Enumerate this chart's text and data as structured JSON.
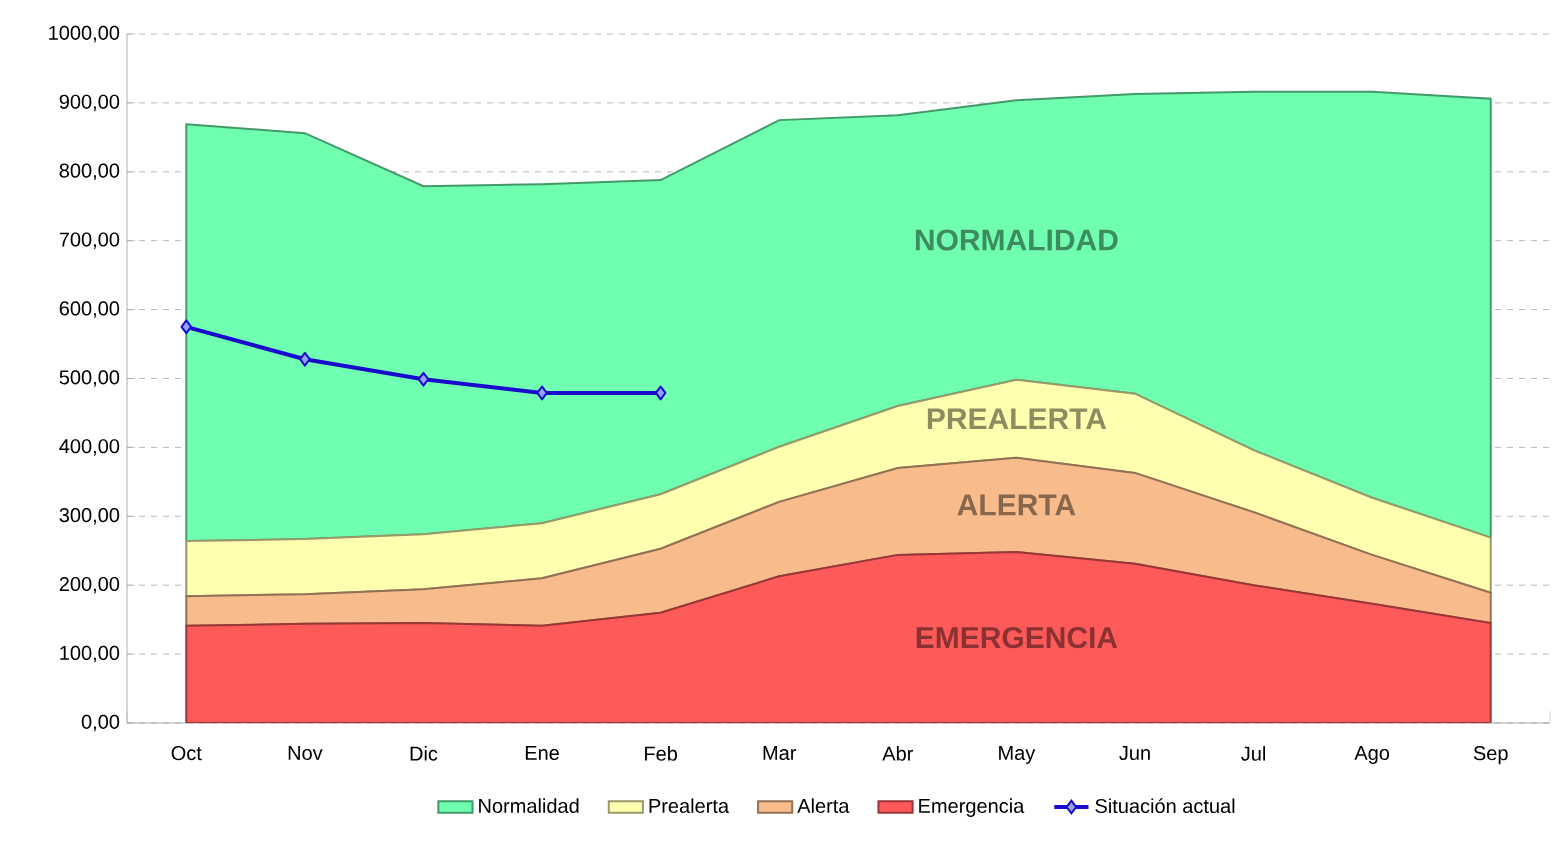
{
  "chart_data": {
    "type": "area",
    "stacked": true,
    "categories": [
      "Oct",
      "Nov",
      "Dic",
      "Ene",
      "Feb",
      "Mar",
      "Abr",
      "May",
      "Jun",
      "Jul",
      "Ago",
      "Sep"
    ],
    "series": [
      {
        "name": "Emergencia",
        "color": "#ff5a5a",
        "values": [
          141,
          144,
          145,
          141,
          160,
          213,
          244,
          248,
          231,
          200,
          173,
          145
        ]
      },
      {
        "name": "Alerta",
        "color": "#f8bc8c",
        "values": [
          43,
          43,
          49,
          69,
          93,
          108,
          126,
          137,
          132,
          106,
          71,
          44
        ]
      },
      {
        "name": "Prealerta",
        "color": "#ffffb0",
        "values": [
          80,
          80,
          80,
          80,
          79,
          80,
          90,
          113,
          115,
          90,
          83,
          80
        ]
      },
      {
        "name": "Normalidad",
        "color": "#70ffb0",
        "values": [
          605,
          589,
          505,
          492,
          456,
          474,
          422,
          406,
          435,
          520,
          589,
          637
        ]
      },
      {
        "name": "Situación actual",
        "type": "line",
        "color": "#1a0acc",
        "marker": "diamond",
        "line_style": "solid",
        "values": [
          575,
          528,
          499,
          479,
          479,
          null,
          null,
          null,
          null,
          null,
          null,
          null
        ]
      }
    ],
    "ylim": [
      0,
      1000
    ],
    "yticks": [
      {
        "value": 0,
        "label": "0,00"
      },
      {
        "value": 100,
        "label": "100,00"
      },
      {
        "value": 200,
        "label": "200,00"
      },
      {
        "value": 300,
        "label": "300,00"
      },
      {
        "value": 400,
        "label": "400,00"
      },
      {
        "value": 500,
        "label": "500,00"
      },
      {
        "value": 600,
        "label": "600,00"
      },
      {
        "value": 700,
        "label": "700,00"
      },
      {
        "value": 800,
        "label": "800,00"
      },
      {
        "value": 900,
        "label": "900,00"
      },
      {
        "value": 1000,
        "label": "1000,00"
      }
    ],
    "grid": "y",
    "legend": "bottom",
    "annotations": [
      "NORMALIDAD",
      "PREALERTA",
      "ALERTA",
      "EMERGENCIA"
    ]
  }
}
